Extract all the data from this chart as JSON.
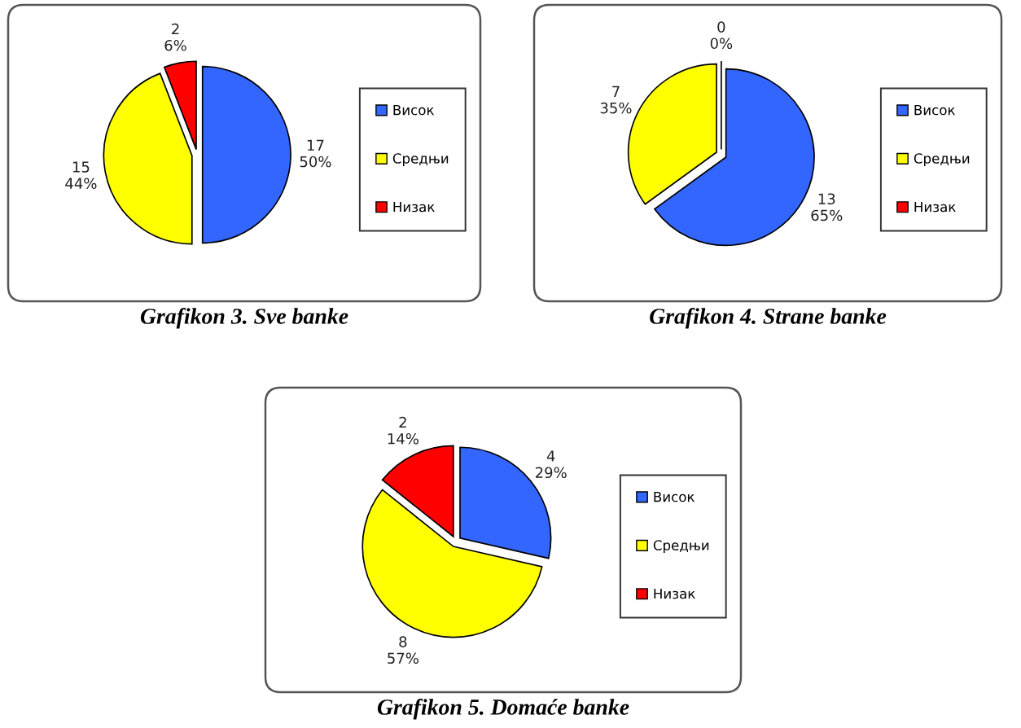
{
  "chart_data": [
    {
      "type": "pie",
      "title": "Grafikon 3. Sve banke",
      "categories": [
        "Висок",
        "Средњи",
        "Низак"
      ],
      "values": [
        17,
        15,
        2
      ],
      "colors": [
        "#3366ff",
        "#ffff00",
        "#ff0000"
      ],
      "value_labels": [
        "17\n50%",
        "15\n44%",
        "2\n6%"
      ],
      "legend": "right"
    },
    {
      "type": "pie",
      "title": "Grafikon 4. Strane banke",
      "categories": [
        "Висок",
        "Средњи",
        "Низак"
      ],
      "values": [
        13,
        7,
        0
      ],
      "colors": [
        "#3366ff",
        "#ffff00",
        "#ff0000"
      ],
      "value_labels": [
        "13\n65%",
        "7\n35%",
        "0\n0%"
      ],
      "legend": "right"
    },
    {
      "type": "pie",
      "title": "Grafikon 5. Domaće banke",
      "categories": [
        "Висок",
        "Средњи",
        "Низак"
      ],
      "values": [
        4,
        8,
        2
      ],
      "colors": [
        "#3366ff",
        "#ffff00",
        "#ff0000"
      ],
      "value_labels": [
        "4\n29%",
        "8\n57%",
        "2\n14%"
      ],
      "legend": "right"
    }
  ]
}
